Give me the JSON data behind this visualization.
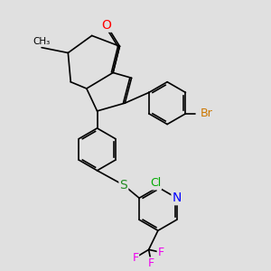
{
  "background_color": "#e0e0e0",
  "bond_color": "#000000",
  "bond_width": 1.2,
  "atom_colors": {
    "O": "#ff0000",
    "N": "#0000ff",
    "Br": "#cc7700",
    "Cl": "#00aa00",
    "S": "#228B22",
    "F": "#ee00ee",
    "C": "#000000"
  },
  "font_size": 8.5,
  "bg": "#e0e0e0"
}
